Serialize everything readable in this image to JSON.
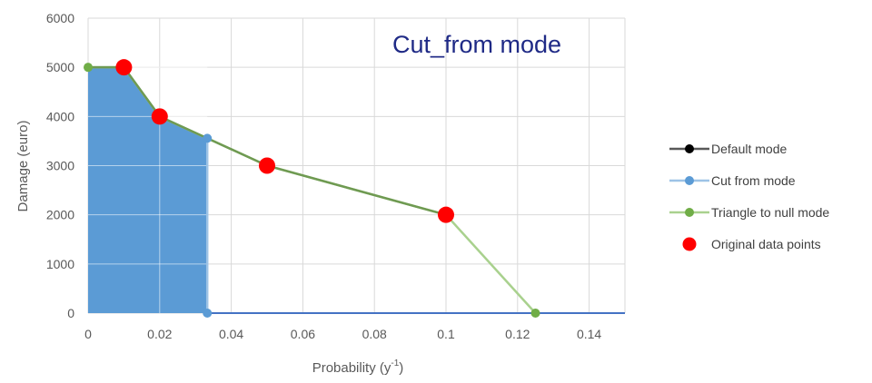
{
  "chart_data": {
    "type": "line",
    "annotation": "Cut_from mode",
    "xlabel": "Probability (y",
    "xlabel_sup": "-1",
    "xlabel_suffix": ")",
    "ylabel": "Damage (euro)",
    "xlim": [
      0,
      0.15
    ],
    "ylim": [
      0,
      6000
    ],
    "x_ticks": [
      0,
      0.02,
      0.04,
      0.06,
      0.08,
      0.1,
      0.12,
      0.14
    ],
    "x_tick_labels": [
      "0",
      "0.02",
      "0.04",
      "0.06",
      "0.08",
      "0.1",
      "0.12",
      "0.14"
    ],
    "y_ticks": [
      0,
      1000,
      2000,
      3000,
      4000,
      5000,
      6000
    ],
    "y_tick_labels": [
      "0",
      "1000",
      "2000",
      "3000",
      "4000",
      "5000",
      "6000"
    ],
    "grid": true,
    "legend_position": "right",
    "shaded_area": {
      "color": "#5b9bd5",
      "x": [
        0,
        0,
        0.01,
        0.02,
        0.0333,
        0.0333
      ],
      "y": [
        0,
        5000,
        5000,
        4000,
        3556,
        0
      ]
    },
    "series": [
      {
        "name": "Default mode",
        "style": "line-marker",
        "line_color": "#595959",
        "marker_color": "#000000",
        "x": [
          0,
          0.01,
          0.02,
          0.05,
          0.1
        ],
        "y": [
          5000,
          5000,
          4000,
          3000,
          2000
        ]
      },
      {
        "name": "Cut from mode",
        "style": "line-marker",
        "line_color": "#9dc3e6",
        "marker_color": "#5b9bd5",
        "x": [
          0,
          0.01,
          0.02,
          0.0333,
          0.0333
        ],
        "y": [
          5000,
          5000,
          4000,
          3556,
          0
        ],
        "markers_at": [
          0,
          3,
          4
        ]
      },
      {
        "name": "Triangle to null mode",
        "style": "line-marker",
        "line_color": "#a9d18e",
        "marker_color": "#70ad47",
        "x": [
          0,
          0.01,
          0.02,
          0.05,
          0.1,
          0.125
        ],
        "y": [
          5000,
          5000,
          4000,
          3000,
          2000,
          0
        ],
        "markers_at": [
          0,
          5
        ]
      },
      {
        "name": "Original data points",
        "style": "marker",
        "marker_color": "#ff0000",
        "x": [
          0.01,
          0.02,
          0.05,
          0.1
        ],
        "y": [
          5000,
          4000,
          3000,
          2000
        ]
      }
    ],
    "overlay_segments": [
      {
        "color": "#6f9a52",
        "x": [
          0,
          0.01,
          0.02,
          0.05,
          0.1
        ],
        "y": [
          5000,
          5000,
          4000,
          3000,
          2000
        ]
      }
    ],
    "baseline_line": {
      "color": "#4472c4",
      "x": [
        0.0333,
        0.15
      ],
      "y": [
        0,
        0
      ]
    }
  }
}
